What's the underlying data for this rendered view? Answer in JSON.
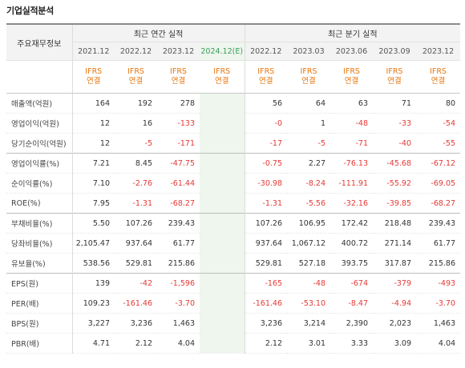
{
  "title": "기업실적분석",
  "header": {
    "label": "주요재무정보",
    "annual_group": "최근 연간 실적",
    "quarterly_group": "최근 분기 실적",
    "periods": [
      "2021.12",
      "2022.12",
      "2023.12",
      "2024.12(E)",
      "2022.12",
      "2023.03",
      "2023.06",
      "2023.09",
      "2023.12"
    ],
    "ifrs_top": "IFRS",
    "ifrs_bottom": "연결"
  },
  "colors": {
    "negative": "#e53935",
    "ifrs": "#e8760f",
    "estimate": "#3c9c5a"
  },
  "rows": [
    {
      "label": "매출액(억원)",
      "values": [
        "164",
        "192",
        "278",
        "",
        "56",
        "64",
        "63",
        "71",
        "80"
      ]
    },
    {
      "label": "영업이익(억원)",
      "values": [
        "12",
        "16",
        "-133",
        "",
        "-0",
        "1",
        "-48",
        "-33",
        "-54"
      ]
    },
    {
      "label": "당기순이익(억원)",
      "values": [
        "12",
        "-5",
        "-171",
        "",
        "-17",
        "-5",
        "-71",
        "-40",
        "-55"
      ]
    },
    {
      "label": "영업이익률(%)",
      "values": [
        "7.21",
        "8.45",
        "-47.75",
        "",
        "-0.75",
        "2.27",
        "-76.13",
        "-45.68",
        "-67.12"
      ]
    },
    {
      "label": "순이익률(%)",
      "values": [
        "7.10",
        "-2.76",
        "-61.44",
        "",
        "-30.98",
        "-8.24",
        "-111.91",
        "-55.92",
        "-69.05"
      ]
    },
    {
      "label": "ROE(%)",
      "values": [
        "7.95",
        "-1.31",
        "-68.27",
        "",
        "-1.31",
        "-5.56",
        "-32.16",
        "-39.85",
        "-68.27"
      ]
    },
    {
      "label": "부채비율(%)",
      "values": [
        "5.50",
        "107.26",
        "239.43",
        "",
        "107.26",
        "106.95",
        "172.42",
        "218.48",
        "239.43"
      ]
    },
    {
      "label": "당좌비율(%)",
      "values": [
        "2,105.47",
        "937.64",
        "61.77",
        "",
        "937.64",
        "1,067.12",
        "400.72",
        "271.14",
        "61.77"
      ]
    },
    {
      "label": "유보율(%)",
      "values": [
        "538.56",
        "529.81",
        "215.86",
        "",
        "529.81",
        "527.18",
        "393.75",
        "317.87",
        "215.86"
      ]
    },
    {
      "label": "EPS(원)",
      "values": [
        "139",
        "-42",
        "-1,596",
        "",
        "-165",
        "-48",
        "-674",
        "-379",
        "-493"
      ]
    },
    {
      "label": "PER(배)",
      "values": [
        "109.23",
        "-161.46",
        "-3.70",
        "",
        "-161.46",
        "-53.10",
        "-8.47",
        "-4.94",
        "-3.70"
      ]
    },
    {
      "label": "BPS(원)",
      "values": [
        "3,227",
        "3,236",
        "1,463",
        "",
        "3,236",
        "3,214",
        "2,390",
        "2,023",
        "1,463"
      ]
    },
    {
      "label": "PBR(배)",
      "values": [
        "4.71",
        "2.12",
        "4.04",
        "",
        "2.12",
        "3.01",
        "3.33",
        "3.09",
        "4.04"
      ]
    }
  ]
}
